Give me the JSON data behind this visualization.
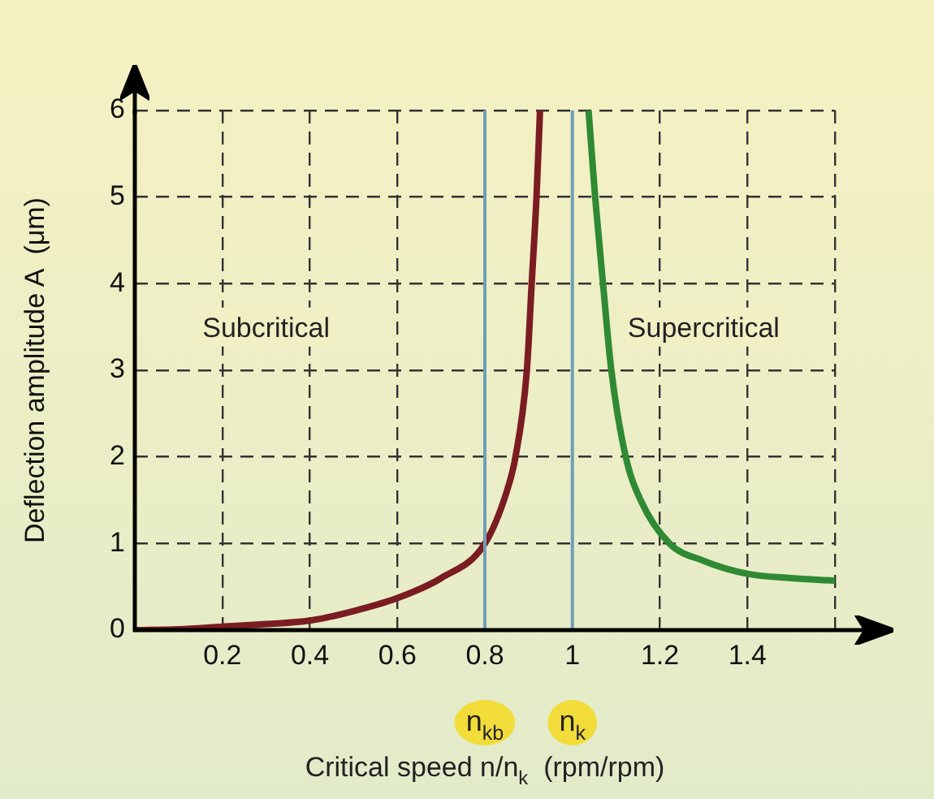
{
  "chart_data": {
    "type": "line",
    "xlabel": "Critical speed n/n$_{k}$  (rpm/rpm)",
    "ylabel": "Deflection amplitude A  (μm)",
    "xlim": [
      0,
      1.6
    ],
    "ylim": [
      0,
      6
    ],
    "xticks": [
      0.2,
      0.4,
      0.6,
      0.8,
      1,
      1.2,
      1.4,
      {
        "value": 1.6,
        "label": null
      }
    ],
    "yticks": [
      0,
      1,
      2,
      3,
      4,
      5,
      6
    ],
    "grid": true,
    "legend": false,
    "marker": "none",
    "line_style": "solid",
    "series": [
      {
        "color": "#7a1c22",
        "x": [
          0,
          0.1,
          0.2,
          0.3,
          0.4,
          0.5,
          0.6,
          0.7,
          0.8,
          0.85,
          0.87,
          0.896,
          0.907,
          0.918,
          0.926
        ],
        "values": [
          0,
          0.01,
          0.04,
          0.07,
          0.11,
          0.22,
          0.37,
          0.6,
          1,
          1.6,
          2,
          3,
          4,
          5,
          6
        ]
      },
      {
        "color": "#2f8a33",
        "x": [
          1.037,
          1.052,
          1.07,
          1.089,
          1.122,
          1.156,
          1.222,
          1.3,
          1.4,
          1.5,
          1.6
        ],
        "values": [
          6,
          5,
          4,
          3,
          2,
          1.5,
          1,
          0.8,
          0.65,
          0.6,
          0.57
        ]
      }
    ],
    "ref_lines": [
      {
        "axis": "x",
        "value": 0.8,
        "label": "n$_{kb}$",
        "color": "#6e9fb8"
      },
      {
        "axis": "x",
        "value": 1,
        "label": "n$_{k}$",
        "color": "#6e9fb8"
      }
    ],
    "annotations": [
      "Subcritical",
      "Supercritical"
    ]
  }
}
